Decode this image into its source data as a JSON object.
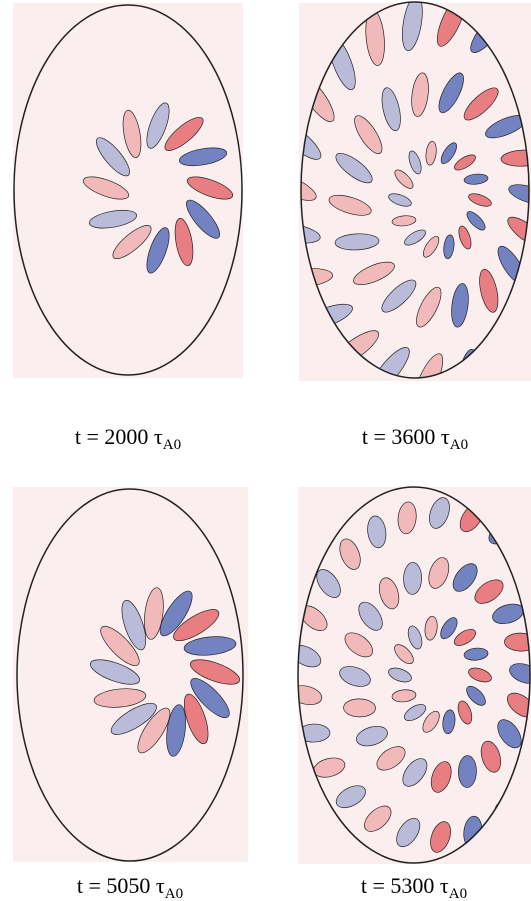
{
  "panels": [
    {
      "caption": "t = 2000 τ",
      "subscript": "A0"
    },
    {
      "caption": "t = 3600 τ",
      "subscript": "A0"
    },
    {
      "caption": "t = 5050 τ",
      "subscript": "A0"
    },
    {
      "caption": "t = 5300 τ",
      "subscript": "A0"
    }
  ]
}
